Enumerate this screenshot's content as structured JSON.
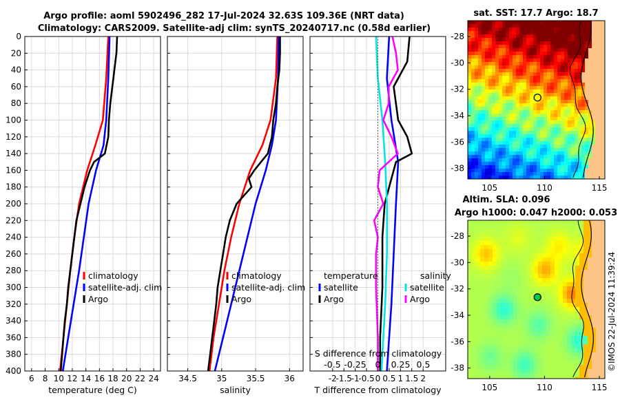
{
  "title_line1": "Argo profile: aoml 5902496_282 17-Jul-2024 32.63S 109.36E (NRT data)",
  "title_line2": "Climatology: CARS2009. Satellite-adj clim: synTS_20240717.nc (0.58d earlier)",
  "sst_title": "sat. SST: 17.7 Argo: 18.7",
  "sla_title1": "Altim. SLA: 0.096",
  "sla_title2": "Argo h1000: 0.047 h2000: 0.053",
  "footer_stamp": "©IMOS 22-Jul-2024 11:39:24",
  "colors": {
    "climatology": "#ff0000",
    "satellite": "#0000ff",
    "argo": "#000000",
    "s_satellite": "#00e5e5",
    "s_argo": "#ff00ff"
  },
  "chart_data": [
    {
      "id": "temperature",
      "type": "line",
      "xlabel": "temperature (deg C)",
      "ylabel": "",
      "xlim": [
        5,
        25
      ],
      "ylim": [
        400,
        0
      ],
      "xticks": [
        "6",
        "8",
        "10",
        "12",
        "14",
        "16",
        "18",
        "20",
        "22",
        "24"
      ],
      "xtick_values": [
        6,
        8,
        10,
        12,
        14,
        16,
        18,
        20,
        22,
        24
      ],
      "yticks": [
        "0",
        "20",
        "40",
        "60",
        "80",
        "100",
        "120",
        "140",
        "160",
        "180",
        "200",
        "220",
        "240",
        "260",
        "280",
        "300",
        "320",
        "340",
        "360",
        "380",
        "400"
      ],
      "ytick_values": [
        0,
        20,
        40,
        60,
        80,
        100,
        120,
        140,
        160,
        180,
        200,
        220,
        240,
        260,
        280,
        300,
        320,
        340,
        360,
        380,
        400
      ],
      "legend": [
        "climatology",
        "satellite-adj. clim",
        "Argo"
      ],
      "series": [
        {
          "name": "climatology",
          "color": "#ff0000",
          "depth": [
            0,
            50,
            100,
            130,
            160,
            200,
            240,
            280,
            320,
            360,
            400
          ],
          "values": [
            17.3,
            17.0,
            16.5,
            15.4,
            14.2,
            13.0,
            12.3,
            11.7,
            11.2,
            10.7,
            10.2
          ]
        },
        {
          "name": "satellite-adj. clim",
          "color": "#0000ff",
          "depth": [
            0,
            50,
            100,
            130,
            160,
            200,
            240,
            280,
            320,
            360,
            400
          ],
          "values": [
            17.5,
            17.3,
            17.0,
            16.6,
            15.5,
            14.4,
            13.7,
            13.0,
            12.2,
            11.4,
            10.6
          ]
        },
        {
          "name": "Argo",
          "color": "#000000",
          "depth": [
            0,
            20,
            40,
            60,
            80,
            100,
            120,
            140,
            150,
            160,
            180,
            200,
            220,
            240,
            260,
            280,
            300,
            320,
            340,
            360,
            380,
            400
          ],
          "values": [
            18.6,
            18.5,
            18.2,
            17.9,
            17.6,
            17.4,
            17.3,
            16.8,
            15.2,
            14.6,
            13.8,
            13.2,
            12.6,
            12.3,
            12.0,
            11.7,
            11.4,
            11.2,
            10.9,
            10.7,
            10.5,
            10.3
          ]
        }
      ]
    },
    {
      "id": "salinity",
      "type": "line",
      "xlabel": "salinity",
      "ylim": [
        400,
        0
      ],
      "xlim": [
        34.2,
        36.2
      ],
      "xticks": [
        "34.5",
        "35",
        "35.5",
        "36"
      ],
      "xtick_values": [
        34.5,
        35,
        35.5,
        36
      ],
      "legend": [
        "climatology",
        "satellite-adj. clim",
        "Argo"
      ],
      "series": [
        {
          "name": "climatology",
          "color": "#ff0000",
          "depth": [
            0,
            50,
            100,
            130,
            160,
            200,
            240,
            280,
            320,
            360,
            400
          ],
          "values": [
            35.82,
            35.8,
            35.72,
            35.6,
            35.42,
            35.26,
            35.14,
            35.04,
            34.96,
            34.88,
            34.82
          ]
        },
        {
          "name": "satellite-adj. clim",
          "color": "#0000ff",
          "depth": [
            0,
            50,
            100,
            130,
            160,
            200,
            240,
            280,
            320,
            360,
            400
          ],
          "values": [
            35.84,
            35.83,
            35.8,
            35.74,
            35.65,
            35.5,
            35.38,
            35.26,
            35.14,
            35.02,
            34.9
          ]
        },
        {
          "name": "Argo",
          "color": "#000000",
          "depth": [
            0,
            20,
            40,
            60,
            80,
            100,
            120,
            140,
            160,
            170,
            180,
            200,
            220,
            240,
            260,
            280,
            300,
            320,
            340,
            360,
            380,
            400
          ],
          "values": [
            35.86,
            35.86,
            35.85,
            35.82,
            35.8,
            35.76,
            35.74,
            35.68,
            35.48,
            35.4,
            35.44,
            35.22,
            35.12,
            35.06,
            35.02,
            34.98,
            34.94,
            34.92,
            34.89,
            34.86,
            34.83,
            34.8
          ]
        }
      ]
    },
    {
      "id": "differences",
      "type": "line",
      "xlabel": "T difference from climatology",
      "top_axis_label": "S difference from climatology",
      "xlim": [
        -3,
        3
      ],
      "ylim": [
        400,
        0
      ],
      "xticks": [
        "-2",
        "-1.5",
        "-1",
        "-0.5",
        "0",
        "0.5",
        "1",
        "1.5",
        "2"
      ],
      "xtick_values": [
        -2,
        -1.5,
        -1,
        -0.5,
        0,
        0.5,
        1,
        1.5,
        2
      ],
      "top_ticks": [
        "-0.5",
        "-0.25",
        "0",
        "0.25",
        "0.5"
      ],
      "top_tick_values": [
        -0.5,
        -0.25,
        0,
        0.25,
        0.5
      ],
      "legend_left_title": "temperature",
      "legend_right_title": "salinity",
      "legend_left": [
        "satellite",
        "Argo"
      ],
      "legend_right": [
        "satellite",
        "Argo"
      ],
      "series": [
        {
          "name": "T satellite",
          "axis": "T",
          "color": "#0000ff",
          "depth": [
            0,
            50,
            100,
            150,
            200,
            260,
            320,
            400
          ],
          "values": [
            0.5,
            0.4,
            0.6,
            0.9,
            0.8,
            0.7,
            0.6,
            0.4
          ]
        },
        {
          "name": "T Argo",
          "axis": "T",
          "color": "#000000",
          "depth": [
            0,
            30,
            60,
            100,
            120,
            140,
            150,
            170,
            200,
            240,
            300,
            360,
            400
          ],
          "values": [
            1.4,
            1.3,
            0.7,
            0.9,
            1.3,
            1.5,
            0.8,
            0.6,
            0.3,
            0.2,
            0.2,
            0.1,
            0.1
          ]
        },
        {
          "name": "S satellite",
          "axis": "S",
          "color": "#00e5e5",
          "depth": [
            0,
            50,
            100,
            150,
            200,
            260,
            320,
            400
          ],
          "values": [
            -0.02,
            0.0,
            0.05,
            0.08,
            0.1,
            0.1,
            0.08,
            0.04
          ]
        },
        {
          "name": "S Argo",
          "axis": "S",
          "color": "#ff00ff",
          "depth": [
            0,
            20,
            40,
            60,
            80,
            100,
            120,
            140,
            160,
            180,
            200,
            220,
            240,
            260,
            300,
            360,
            400
          ],
          "values": [
            0.16,
            0.2,
            0.22,
            0.12,
            0.12,
            0.06,
            0.15,
            0.22,
            0.02,
            0.0,
            0.06,
            -0.04,
            0.0,
            -0.02,
            -0.02,
            0.0,
            0.0
          ]
        }
      ]
    },
    {
      "id": "sst_map",
      "type": "heatmap",
      "title": "sat. SST: 17.7 Argo: 18.7",
      "xlim": [
        103,
        115.5
      ],
      "ylim": [
        -38.8,
        -26.8
      ],
      "xticks": [
        "105",
        "110",
        "115"
      ],
      "xtick_values": [
        105,
        110,
        115
      ],
      "yticks": [
        "-28",
        "-30",
        "-32",
        "-34",
        "-36",
        "-38"
      ],
      "ytick_values": [
        -28,
        -30,
        -32,
        -34,
        -36,
        -38
      ],
      "argo_position": {
        "lon": 109.36,
        "lat": -32.63
      }
    },
    {
      "id": "sla_map",
      "type": "heatmap",
      "title": "Altim. SLA: 0.096",
      "xlim": [
        103,
        115.5
      ],
      "ylim": [
        -38.8,
        -26.8
      ],
      "xticks": [
        "105",
        "110",
        "115"
      ],
      "xtick_values": [
        105,
        110,
        115
      ],
      "yticks": [
        "-28",
        "-30",
        "-32",
        "-34",
        "-36",
        "-38"
      ],
      "ytick_values": [
        -28,
        -30,
        -32,
        -34,
        -36,
        -38
      ],
      "argo_position": {
        "lon": 109.36,
        "lat": -32.63
      }
    }
  ]
}
